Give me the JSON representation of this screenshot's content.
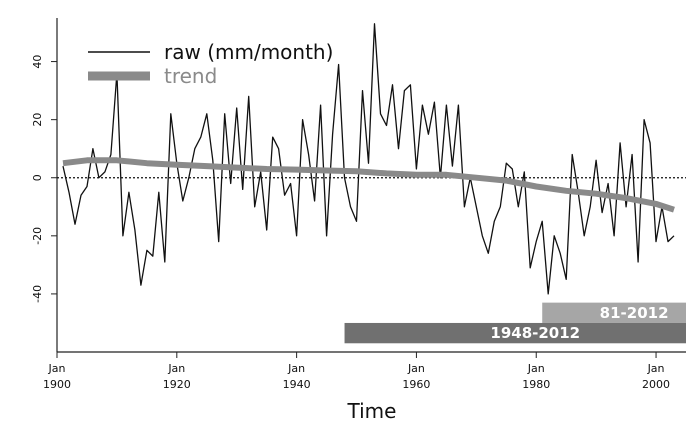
{
  "chart_data": {
    "type": "line",
    "title": "",
    "xlabel": "Time",
    "ylabel": "",
    "xlim": [
      1900,
      2005
    ],
    "ylim": [
      -60,
      55
    ],
    "x_ticks": [
      {
        "value": 1900,
        "line1": "Jan",
        "line2": "1900"
      },
      {
        "value": 1920,
        "line1": "Jan",
        "line2": "1920"
      },
      {
        "value": 1940,
        "line1": "Jan",
        "line2": "1940"
      },
      {
        "value": 1960,
        "line1": "Jan",
        "line2": "1960"
      },
      {
        "value": 1980,
        "line1": "Jan",
        "line2": "1980"
      },
      {
        "value": 2000,
        "line1": "Jan",
        "line2": "2000"
      }
    ],
    "y_ticks": [
      {
        "value": 40,
        "label": "40"
      },
      {
        "value": 20,
        "label": "20"
      },
      {
        "value": 0,
        "label": "0"
      },
      {
        "value": -20,
        "label": "-20"
      },
      {
        "value": -40,
        "label": "-40"
      }
    ],
    "zero_line": true,
    "legend_position": "top-left",
    "series": [
      {
        "name": "raw (mm/month)",
        "color": "#111111",
        "style": "thin",
        "points": [
          [
            1901,
            4
          ],
          [
            1902,
            -5
          ],
          [
            1903,
            -16
          ],
          [
            1904,
            -6
          ],
          [
            1905,
            -3
          ],
          [
            1906,
            10
          ],
          [
            1907,
            0
          ],
          [
            1908,
            2
          ],
          [
            1909,
            8
          ],
          [
            1910,
            36
          ],
          [
            1911,
            -20
          ],
          [
            1912,
            -5
          ],
          [
            1913,
            -18
          ],
          [
            1914,
            -37
          ],
          [
            1915,
            -25
          ],
          [
            1916,
            -27
          ],
          [
            1917,
            -5
          ],
          [
            1918,
            -29
          ],
          [
            1919,
            22
          ],
          [
            1920,
            5
          ],
          [
            1921,
            -8
          ],
          [
            1922,
            0
          ],
          [
            1923,
            10
          ],
          [
            1924,
            14
          ],
          [
            1925,
            22
          ],
          [
            1926,
            6
          ],
          [
            1927,
            -22
          ],
          [
            1928,
            22
          ],
          [
            1929,
            -2
          ],
          [
            1930,
            24
          ],
          [
            1931,
            -4
          ],
          [
            1932,
            28
          ],
          [
            1933,
            -10
          ],
          [
            1934,
            2
          ],
          [
            1935,
            -18
          ],
          [
            1936,
            14
          ],
          [
            1937,
            10
          ],
          [
            1938,
            -6
          ],
          [
            1939,
            -2
          ],
          [
            1940,
            -20
          ],
          [
            1941,
            20
          ],
          [
            1942,
            8
          ],
          [
            1943,
            -8
          ],
          [
            1944,
            25
          ],
          [
            1945,
            -20
          ],
          [
            1946,
            15
          ],
          [
            1947,
            39
          ],
          [
            1948,
            0
          ],
          [
            1949,
            -10
          ],
          [
            1950,
            -15
          ],
          [
            1951,
            30
          ],
          [
            1952,
            5
          ],
          [
            1953,
            53
          ],
          [
            1954,
            22
          ],
          [
            1955,
            18
          ],
          [
            1956,
            32
          ],
          [
            1957,
            10
          ],
          [
            1958,
            30
          ],
          [
            1959,
            32
          ],
          [
            1960,
            3
          ],
          [
            1961,
            25
          ],
          [
            1962,
            15
          ],
          [
            1963,
            26
          ],
          [
            1964,
            0
          ],
          [
            1965,
            25
          ],
          [
            1966,
            4
          ],
          [
            1967,
            25
          ],
          [
            1968,
            -10
          ],
          [
            1969,
            0
          ],
          [
            1970,
            -10
          ],
          [
            1971,
            -20
          ],
          [
            1972,
            -26
          ],
          [
            1973,
            -15
          ],
          [
            1974,
            -10
          ],
          [
            1975,
            5
          ],
          [
            1976,
            3
          ],
          [
            1977,
            -10
          ],
          [
            1978,
            2
          ],
          [
            1979,
            -31
          ],
          [
            1980,
            -22
          ],
          [
            1981,
            -15
          ],
          [
            1982,
            -40
          ],
          [
            1983,
            -20
          ],
          [
            1984,
            -26
          ],
          [
            1985,
            -35
          ],
          [
            1986,
            8
          ],
          [
            1987,
            -5
          ],
          [
            1988,
            -20
          ],
          [
            1989,
            -10
          ],
          [
            1990,
            6
          ],
          [
            1991,
            -12
          ],
          [
            1992,
            -2
          ],
          [
            1993,
            -20
          ],
          [
            1994,
            12
          ],
          [
            1995,
            -10
          ],
          [
            1996,
            8
          ],
          [
            1997,
            -29
          ],
          [
            1998,
            20
          ],
          [
            1999,
            12
          ],
          [
            2000,
            -22
          ],
          [
            2001,
            -10
          ],
          [
            2002,
            -22
          ],
          [
            2003,
            -20
          ]
        ]
      },
      {
        "name": "trend",
        "color": "#8a8a8a",
        "style": "thick",
        "points": [
          [
            1901,
            5
          ],
          [
            1905,
            6
          ],
          [
            1910,
            6
          ],
          [
            1915,
            5
          ],
          [
            1920,
            4.5
          ],
          [
            1925,
            4
          ],
          [
            1930,
            3.5
          ],
          [
            1935,
            3
          ],
          [
            1940,
            2.8
          ],
          [
            1945,
            2.5
          ],
          [
            1950,
            2.2
          ],
          [
            1955,
            1.5
          ],
          [
            1960,
            1
          ],
          [
            1965,
            1
          ],
          [
            1970,
            0
          ],
          [
            1975,
            -1
          ],
          [
            1980,
            -3
          ],
          [
            1985,
            -4.5
          ],
          [
            1990,
            -5.5
          ],
          [
            1995,
            -7
          ],
          [
            2000,
            -9
          ],
          [
            2003,
            -11
          ]
        ]
      }
    ],
    "bands": [
      {
        "label": "81-2012",
        "start": 1981,
        "end": 2012,
        "y_top": -43,
        "y_bottom": -50,
        "color": "#a6a6a6"
      },
      {
        "label": "1948-2012",
        "start": 1948,
        "end": 2012,
        "y_top": -50,
        "y_bottom": -57,
        "color": "#707070"
      }
    ]
  }
}
